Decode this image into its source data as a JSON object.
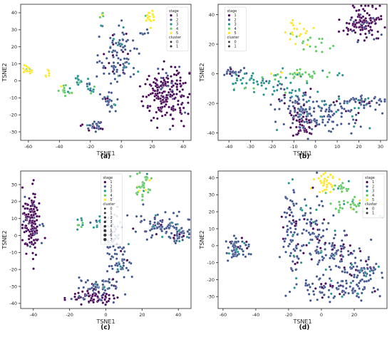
{
  "chart_data": [
    {
      "type": "scatter",
      "panel_label": "(a)",
      "xlabel": "TSNE1",
      "ylabel": "TSNE2",
      "xlim": [
        -65,
        45
      ],
      "ylim": [
        -35,
        45
      ],
      "xticks": [
        "-60",
        "-40",
        "-20",
        "0",
        "20",
        "40"
      ],
      "yticks": [
        "-30",
        "-20",
        "-10",
        "0",
        "10",
        "20",
        "30",
        "40"
      ],
      "legend_position": "top-right",
      "legend": {
        "stage_title": "stage",
        "stage_items": [
          "1",
          "2",
          "3",
          "4",
          "5"
        ],
        "cluster_title": "cluster",
        "cluster_items": [
          "0",
          "1"
        ]
      },
      "clusters": [
        {
          "cx": -60,
          "cy": 6,
          "sx": 2,
          "sy": 1.5,
          "n": 20,
          "stage": 5
        },
        {
          "cx": -48,
          "cy": 4,
          "sx": 1,
          "sy": 1,
          "n": 6,
          "stage": 5
        },
        {
          "cx": -36,
          "cy": -6,
          "sx": 2,
          "sy": 2,
          "n": 18,
          "stage": 4
        },
        {
          "cx": -28,
          "cy": 0,
          "sx": 2,
          "sy": 1.5,
          "n": 12,
          "stage": 3
        },
        {
          "cx": -20,
          "cy": -3,
          "sx": 2,
          "sy": 2,
          "n": 15,
          "stage": 3
        },
        {
          "cx": -8,
          "cy": -12,
          "sx": 2,
          "sy": 3,
          "n": 25,
          "stage": 2
        },
        {
          "cx": -18,
          "cy": -27,
          "sx": 3,
          "sy": 2,
          "n": 30,
          "stage": 2
        },
        {
          "cx": -5,
          "cy": 3,
          "sx": 2,
          "sy": 4,
          "n": 12,
          "stage": 2
        },
        {
          "cx": -2,
          "cy": 15,
          "sx": 6,
          "sy": 8,
          "n": 90,
          "stage": 2
        },
        {
          "cx": -12,
          "cy": 38,
          "sx": 1,
          "sy": 1,
          "n": 5,
          "stage": 4
        },
        {
          "cx": 18,
          "cy": 38,
          "sx": 2,
          "sy": 3,
          "n": 18,
          "stage": 5
        },
        {
          "cx": 15,
          "cy": 28,
          "sx": 2,
          "sy": 1,
          "n": 6,
          "stage": 2
        },
        {
          "cx": 29,
          "cy": -9,
          "sx": 7,
          "sy": 8,
          "n": 200,
          "stage": 1
        }
      ]
    },
    {
      "type": "scatter",
      "panel_label": "(b)",
      "xlabel": "TSNE1",
      "ylabel": "TSNE2",
      "xlim": [
        -45,
        33
      ],
      "ylim": [
        -45,
        47
      ],
      "xticks": [
        "-40",
        "-30",
        "-20",
        "-10",
        "0",
        "10",
        "20",
        "30"
      ],
      "yticks": [
        "-40",
        "-20",
        "0",
        "20",
        "40"
      ],
      "legend_position": "top-left",
      "legend": {
        "stage_title": "stage",
        "stage_items": [
          "1",
          "2",
          "3",
          "4",
          "5"
        ],
        "cluster_title": "cluster",
        "cluster_items": [
          "0",
          "1"
        ]
      },
      "clusters": [
        {
          "cx": 22,
          "cy": 34,
          "sx": 5,
          "sy": 6,
          "n": 120,
          "stage": 1
        },
        {
          "cx": -8,
          "cy": 30,
          "sx": 3,
          "sy": 4,
          "n": 20,
          "stage": 5
        },
        {
          "cx": -2,
          "cy": 20,
          "sx": 4,
          "sy": 3,
          "n": 15,
          "stage": 4
        },
        {
          "cx": -7,
          "cy": 0,
          "sx": 8,
          "sy": 2,
          "n": 40,
          "stage": 4
        },
        {
          "cx": -38,
          "cy": 1,
          "sx": 3,
          "sy": 1.5,
          "n": 25,
          "stage": 2
        },
        {
          "cx": -28,
          "cy": -6,
          "sx": 6,
          "sy": 3,
          "n": 40,
          "stage": 3
        },
        {
          "cx": -15,
          "cy": -12,
          "sx": 5,
          "sy": 3,
          "n": 25,
          "stage": 3
        },
        {
          "cx": 22,
          "cy": -19,
          "sx": 5,
          "sy": 2,
          "n": 50,
          "stage": 2
        },
        {
          "cx": -8,
          "cy": -22,
          "sx": 6,
          "sy": 5,
          "n": 60,
          "stage": 2
        },
        {
          "cx": 5,
          "cy": -28,
          "sx": 8,
          "sy": 5,
          "n": 120,
          "stage": 2
        },
        {
          "cx": -6,
          "cy": -36,
          "sx": 3,
          "sy": 4,
          "n": 40,
          "stage": 1
        }
      ]
    },
    {
      "type": "scatter",
      "panel_label": "(c)",
      "xlabel": "TSNE1",
      "ylabel": "TSNE2",
      "xlim": [
        -47,
        47
      ],
      "ylim": [
        -43,
        38
      ],
      "xticks": [
        "-40",
        "-20",
        "0",
        "20",
        "40"
      ],
      "yticks": [
        "-40",
        "-30",
        "-20",
        "-10",
        "0",
        "10",
        "20",
        "30"
      ],
      "legend_position": "upper-center",
      "legend": {
        "stage_title": "stage",
        "stage_items": [
          "1",
          "2",
          "3",
          "4",
          "5"
        ],
        "cluster_title": "cluster",
        "cluster_items": [
          "0",
          "1",
          "2",
          "3",
          "4",
          "5",
          "6",
          "7"
        ]
      },
      "clusters": [
        {
          "cx": -41,
          "cy": 6,
          "sx": 2.5,
          "sy": 9,
          "n": 150,
          "stage": 1
        },
        {
          "cx": 20,
          "cy": 29,
          "sx": 3,
          "sy": 4,
          "n": 30,
          "stage": 4
        },
        {
          "cx": 23,
          "cy": 34,
          "sx": 1,
          "sy": 1,
          "n": 8,
          "stage": 4
        },
        {
          "cx": -14,
          "cy": 7,
          "sx": 1.5,
          "sy": 2,
          "n": 10,
          "stage": 3
        },
        {
          "cx": -5,
          "cy": 8,
          "sx": 1.5,
          "sy": 2,
          "n": 10,
          "stage": 3
        },
        {
          "cx": 30,
          "cy": 6,
          "sx": 8,
          "sy": 4,
          "n": 80,
          "stage": 2
        },
        {
          "cx": 40,
          "cy": 1,
          "sx": 4,
          "sy": 3,
          "n": 40,
          "stage": 2
        },
        {
          "cx": 4,
          "cy": 0,
          "sx": 3,
          "sy": 8,
          "n": 50,
          "stage": 2
        },
        {
          "cx": 8,
          "cy": -15,
          "sx": 3,
          "sy": 6,
          "n": 40,
          "stage": 2
        },
        {
          "cx": -4,
          "cy": -30,
          "sx": 5,
          "sy": 3,
          "n": 60,
          "stage": 2
        },
        {
          "cx": -6,
          "cy": -37,
          "sx": 7,
          "sy": 2,
          "n": 70,
          "stage": 1
        }
      ]
    },
    {
      "type": "scatter",
      "panel_label": "(d)",
      "xlabel": "TSNE1",
      "ylabel": "TSNE2",
      "xlim": [
        -63,
        40
      ],
      "ylim": [
        -37,
        44
      ],
      "xticks": [
        "-60",
        "-40",
        "-20",
        "0",
        "20"
      ],
      "yticks": [
        "-30",
        "-20",
        "-10",
        "0",
        "10",
        "20",
        "30",
        "40"
      ],
      "legend_position": "top-right",
      "legend": {
        "stage_title": "stage",
        "stage_items": [
          "1",
          "2",
          "3",
          "4",
          "5"
        ],
        "cluster_title": "cluster",
        "cluster_items": [
          "0",
          "1"
        ]
      },
      "clusters": [
        {
          "cx": -51,
          "cy": -2,
          "sx": 4,
          "sy": 3,
          "n": 60,
          "stage": 2
        },
        {
          "cx": 3,
          "cy": 36,
          "sx": 3,
          "sy": 4,
          "n": 35,
          "stage": 5
        },
        {
          "cx": 13,
          "cy": 36,
          "sx": 3,
          "sy": 3,
          "n": 15,
          "stage": 4
        },
        {
          "cx": 20,
          "cy": 24,
          "sx": 7,
          "sy": 3,
          "n": 40,
          "stage": 4
        },
        {
          "cx": -18,
          "cy": 5,
          "sx": 3,
          "sy": 14,
          "n": 80,
          "stage": 2
        },
        {
          "cx": -5,
          "cy": 8,
          "sx": 6,
          "sy": 10,
          "n": 80,
          "stage": 2
        },
        {
          "cx": 10,
          "cy": -5,
          "sx": 8,
          "sy": 6,
          "n": 80,
          "stage": 2
        },
        {
          "cx": 25,
          "cy": -15,
          "sx": 7,
          "sy": 5,
          "n": 70,
          "stage": 2
        },
        {
          "cx": 10,
          "cy": -26,
          "sx": 12,
          "sy": 3,
          "n": 90,
          "stage": 2
        }
      ]
    }
  ]
}
